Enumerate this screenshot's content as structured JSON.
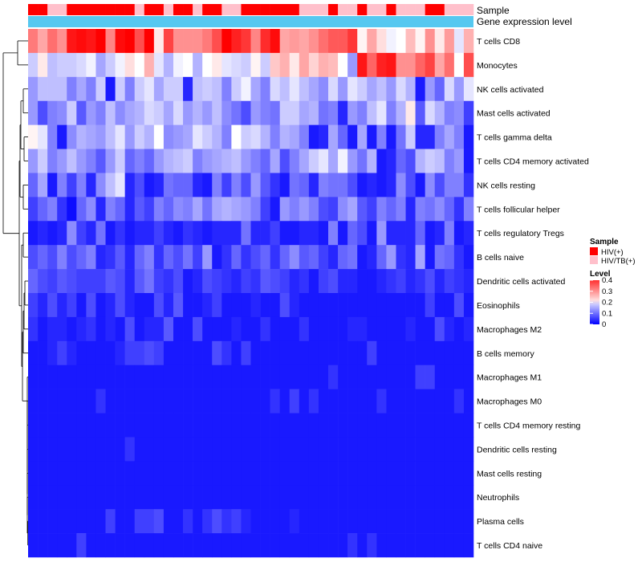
{
  "chart_data": {
    "type": "heatmap",
    "annotation_labels": [
      "Sample",
      "Gene expression level"
    ],
    "rows": [
      "T cells CD8",
      "Monocytes",
      "NK cells activated",
      "Mast cells activated",
      "T cells gamma delta",
      "T cells CD4 memory activated",
      "NK cells resting",
      "T cells follicular helper",
      "T cells regulatory  Tregs",
      "B cells naive",
      "Dendritic cells activated",
      "Eosinophils",
      "Macrophages M2",
      "B cells memory",
      "Macrophages M1",
      "Macrophages M0",
      "T cells CD4 memory resting",
      "Dendritic cells resting",
      "Mast cells resting",
      "Neutrophils",
      "Plasma cells",
      "T cells CD4 naive"
    ],
    "sample_groups": [
      "HIV(+)",
      "HIV(+)",
      "HIV/TB(+)",
      "HIV/TB(+)",
      "HIV(+)",
      "HIV(+)",
      "HIV(+)",
      "HIV(+)",
      "HIV(+)",
      "HIV(+)",
      "HIV(+)",
      "HIV/TB(+)",
      "HIV(+)",
      "HIV(+)",
      "HIV/TB(+)",
      "HIV(+)",
      "HIV(+)",
      "HIV/TB(+)",
      "HIV(+)",
      "HIV(+)",
      "HIV/TB(+)",
      "HIV/TB(+)",
      "HIV(+)",
      "HIV(+)",
      "HIV(+)",
      "HIV(+)",
      "HIV(+)",
      "HIV(+)",
      "HIV/TB(+)",
      "HIV/TB(+)",
      "HIV/TB(+)",
      "HIV(+)",
      "HIV/TB(+)",
      "HIV/TB(+)",
      "HIV(+)",
      "HIV/TB(+)",
      "HIV/TB(+)",
      "HIV(+)",
      "HIV/TB(+)",
      "HIV/TB(+)",
      "HIV/TB(+)",
      "HIV(+)",
      "HIV(+)",
      "HIV/TB(+)",
      "HIV/TB(+)",
      "HIV/TB(+)"
    ],
    "values": [
      [
        0.32,
        0.28,
        0.33,
        0.3,
        0.41,
        0.42,
        0.41,
        0.43,
        0.31,
        0.42,
        0.43,
        0.36,
        0.43,
        0.22,
        0.37,
        0.3,
        0.3,
        0.3,
        0.32,
        0.36,
        0.43,
        0.4,
        0.38,
        0.31,
        0.39,
        0.42,
        0.28,
        0.29,
        0.28,
        0.3,
        0.33,
        0.35,
        0.35,
        0.38,
        0.21,
        0.28,
        0.23,
        0.19,
        0.2,
        0.26,
        0.21,
        0.3,
        0.22,
        0.29,
        0.18,
        0.27
      ],
      [
        0.16,
        0.22,
        0.15,
        0.16,
        0.16,
        0.17,
        0.19,
        0.13,
        0.16,
        0.19,
        0.23,
        0.2,
        0.27,
        0.18,
        0.14,
        0.19,
        0.2,
        0.14,
        0.2,
        0.22,
        0.18,
        0.17,
        0.16,
        0.21,
        0.16,
        0.25,
        0.27,
        0.22,
        0.28,
        0.24,
        0.27,
        0.26,
        0.2,
        0.12,
        0.41,
        0.34,
        0.4,
        0.41,
        0.3,
        0.3,
        0.34,
        0.37,
        0.28,
        0.33,
        0.2,
        0.36
      ],
      [
        0.12,
        0.15,
        0.15,
        0.15,
        0.1,
        0.13,
        0.1,
        0.16,
        0.02,
        0.16,
        0.1,
        0.16,
        0.18,
        0.13,
        0.16,
        0.16,
        0.03,
        0.15,
        0.16,
        0.15,
        0.1,
        0.16,
        0.19,
        0.13,
        0.1,
        0.17,
        0.15,
        0.18,
        0.15,
        0.13,
        0.11,
        0.17,
        0.12,
        0.18,
        0.16,
        0.13,
        0.15,
        0.12,
        0.17,
        0.14,
        0.02,
        0.12,
        0.08,
        0.17,
        0.12,
        0.18
      ],
      [
        0.12,
        0.06,
        0.1,
        0.11,
        0.16,
        0.07,
        0.12,
        0.1,
        0.15,
        0.11,
        0.13,
        0.14,
        0.17,
        0.16,
        0.13,
        0.17,
        0.12,
        0.14,
        0.12,
        0.15,
        0.11,
        0.09,
        0.06,
        0.12,
        0.1,
        0.09,
        0.16,
        0.16,
        0.13,
        0.14,
        0.09,
        0.1,
        0.03,
        0.12,
        0.1,
        0.15,
        0.18,
        0.1,
        0.14,
        0.22,
        0.07,
        0.17,
        0.14,
        0.1,
        0.11,
        0.05
      ],
      [
        0.21,
        0.18,
        0.1,
        0.02,
        0.11,
        0.14,
        0.13,
        0.12,
        0.15,
        0.18,
        0.12,
        0.16,
        0.14,
        0.2,
        0.11,
        0.12,
        0.13,
        0.18,
        0.16,
        0.14,
        0.1,
        0.2,
        0.16,
        0.17,
        0.14,
        0.1,
        0.14,
        0.13,
        0.1,
        0.02,
        0.03,
        0.13,
        0.08,
        0.02,
        0.13,
        0.02,
        0.1,
        0.02,
        0.09,
        0.16,
        0.03,
        0.03,
        0.1,
        0.13,
        0.1,
        0.02
      ],
      [
        0.12,
        0.16,
        0.1,
        0.12,
        0.15,
        0.12,
        0.1,
        0.07,
        0.12,
        0.16,
        0.08,
        0.1,
        0.08,
        0.12,
        0.14,
        0.15,
        0.16,
        0.1,
        0.12,
        0.13,
        0.14,
        0.15,
        0.12,
        0.1,
        0.08,
        0.13,
        0.06,
        0.1,
        0.13,
        0.16,
        0.18,
        0.13,
        0.19,
        0.12,
        0.09,
        0.14,
        0.02,
        0.03,
        0.08,
        0.06,
        0.14,
        0.16,
        0.15,
        0.1,
        0.12,
        0.02
      ],
      [
        0.08,
        0.13,
        0.02,
        0.1,
        0.05,
        0.1,
        0.03,
        0.11,
        0.15,
        0.18,
        0.03,
        0.06,
        0.02,
        0.03,
        0.09,
        0.08,
        0.08,
        0.03,
        0.02,
        0.1,
        0.05,
        0.1,
        0.06,
        0.12,
        0.07,
        0.04,
        0.02,
        0.09,
        0.08,
        0.03,
        0.1,
        0.09,
        0.09,
        0.06,
        0.02,
        0.03,
        0.02,
        0.03,
        0.11,
        0.06,
        0.02,
        0.11,
        0.06,
        0.1,
        0.1,
        0.04
      ],
      [
        0.05,
        0.08,
        0.1,
        0.04,
        0.01,
        0.08,
        0.11,
        0.03,
        0.1,
        0.08,
        0.03,
        0.07,
        0.05,
        0.1,
        0.08,
        0.11,
        0.1,
        0.13,
        0.09,
        0.13,
        0.14,
        0.13,
        0.12,
        0.1,
        0.05,
        0.02,
        0.12,
        0.1,
        0.12,
        0.1,
        0.06,
        0.05,
        0.11,
        0.13,
        0.07,
        0.05,
        0.1,
        0.08,
        0.1,
        0.03,
        0.1,
        0.09,
        0.11,
        0.08,
        0.04,
        0.1
      ],
      [
        0.02,
        0.03,
        0.02,
        0.03,
        0.11,
        0.05,
        0.03,
        0.09,
        0.02,
        0.04,
        0.02,
        0.03,
        0.03,
        0.05,
        0.03,
        0.02,
        0.04,
        0.03,
        0.02,
        0.03,
        0.03,
        0.03,
        0.09,
        0.03,
        0.03,
        0.05,
        0.02,
        0.02,
        0.03,
        0.03,
        0.02,
        0.1,
        0.02,
        0.08,
        0.06,
        0.02,
        0.12,
        0.03,
        0.03,
        0.03,
        0.08,
        0.02,
        0.03,
        0.1,
        0.02,
        0.03
      ],
      [
        0.06,
        0.08,
        0.06,
        0.1,
        0.06,
        0.08,
        0.1,
        0.03,
        0.04,
        0.07,
        0.03,
        0.08,
        0.1,
        0.04,
        0.08,
        0.06,
        0.09,
        0.05,
        0.12,
        0.02,
        0.04,
        0.08,
        0.04,
        0.06,
        0.08,
        0.04,
        0.08,
        0.11,
        0.07,
        0.08,
        0.05,
        0.03,
        0.08,
        0.09,
        0.02,
        0.03,
        0.08,
        0.12,
        0.04,
        0.03,
        0.13,
        0.02,
        0.09,
        0.08,
        0.04,
        0.02
      ],
      [
        0.08,
        0.06,
        0.05,
        0.07,
        0.06,
        0.05,
        0.05,
        0.05,
        0.07,
        0.06,
        0.03,
        0.07,
        0.09,
        0.05,
        0.04,
        0.06,
        0.02,
        0.03,
        0.06,
        0.05,
        0.04,
        0.03,
        0.05,
        0.04,
        0.07,
        0.06,
        0.05,
        0.03,
        0.04,
        0.02,
        0.05,
        0.06,
        0.03,
        0.03,
        0.02,
        0.02,
        0.03,
        0.04,
        0.05,
        0.03,
        0.04,
        0.06,
        0.03,
        0.05,
        0.04,
        0.03
      ],
      [
        0.05,
        0.03,
        0.06,
        0.03,
        0.05,
        0.02,
        0.06,
        0.02,
        0.03,
        0.06,
        0.03,
        0.02,
        0.02,
        0.06,
        0.03,
        0.07,
        0.02,
        0.02,
        0.03,
        0.05,
        0.02,
        0.02,
        0.02,
        0.03,
        0.02,
        0.02,
        0.06,
        0.03,
        0.02,
        0.02,
        0.02,
        0.02,
        0.02,
        0.02,
        0.02,
        0.02,
        0.02,
        0.02,
        0.02,
        0.02,
        0.02,
        0.05,
        0.02,
        0.02,
        0.06,
        0.02
      ],
      [
        0.04,
        0.02,
        0.03,
        0.03,
        0.02,
        0.03,
        0.04,
        0.02,
        0.03,
        0.02,
        0.06,
        0.02,
        0.03,
        0.03,
        0.07,
        0.02,
        0.02,
        0.06,
        0.02,
        0.02,
        0.02,
        0.03,
        0.02,
        0.02,
        0.04,
        0.02,
        0.02,
        0.02,
        0.04,
        0.02,
        0.02,
        0.02,
        0.02,
        0.03,
        0.03,
        0.02,
        0.02,
        0.02,
        0.02,
        0.03,
        0.02,
        0.02,
        0.06,
        0.03,
        0.02,
        0.03
      ],
      [
        0.02,
        0.02,
        0.03,
        0.05,
        0.03,
        0.02,
        0.02,
        0.02,
        0.02,
        0.03,
        0.05,
        0.05,
        0.06,
        0.05,
        0.02,
        0.02,
        0.02,
        0.02,
        0.02,
        0.06,
        0.04,
        0.02,
        0.05,
        0.02,
        0.02,
        0.02,
        0.02,
        0.02,
        0.02,
        0.02,
        0.02,
        0.02,
        0.02,
        0.02,
        0.02,
        0.05,
        0.02,
        0.02,
        0.02,
        0.02,
        0.02,
        0.02,
        0.02,
        0.02,
        0.02,
        0.02
      ],
      [
        0.02,
        0.02,
        0.02,
        0.02,
        0.02,
        0.02,
        0.02,
        0.02,
        0.02,
        0.02,
        0.02,
        0.02,
        0.02,
        0.02,
        0.02,
        0.02,
        0.02,
        0.02,
        0.02,
        0.02,
        0.02,
        0.02,
        0.02,
        0.02,
        0.02,
        0.02,
        0.02,
        0.02,
        0.02,
        0.02,
        0.02,
        0.04,
        0.02,
        0.02,
        0.02,
        0.02,
        0.02,
        0.02,
        0.02,
        0.02,
        0.05,
        0.05,
        0.02,
        0.02,
        0.02,
        0.02
      ],
      [
        0.02,
        0.02,
        0.02,
        0.02,
        0.02,
        0.02,
        0.02,
        0.04,
        0.02,
        0.02,
        0.02,
        0.02,
        0.02,
        0.02,
        0.02,
        0.02,
        0.02,
        0.02,
        0.02,
        0.02,
        0.02,
        0.02,
        0.02,
        0.02,
        0.02,
        0.04,
        0.02,
        0.05,
        0.02,
        0.04,
        0.02,
        0.02,
        0.02,
        0.02,
        0.02,
        0.02,
        0.04,
        0.02,
        0.02,
        0.02,
        0.02,
        0.02,
        0.02,
        0.02,
        0.04,
        0.02
      ],
      [
        0.02,
        0.02,
        0.02,
        0.02,
        0.02,
        0.02,
        0.02,
        0.02,
        0.02,
        0.02,
        0.02,
        0.02,
        0.02,
        0.02,
        0.02,
        0.02,
        0.02,
        0.02,
        0.02,
        0.02,
        0.02,
        0.02,
        0.02,
        0.02,
        0.02,
        0.02,
        0.02,
        0.02,
        0.02,
        0.02,
        0.02,
        0.02,
        0.02,
        0.02,
        0.02,
        0.02,
        0.02,
        0.02,
        0.02,
        0.02,
        0.02,
        0.02,
        0.02,
        0.02,
        0.02,
        0.02
      ],
      [
        0.02,
        0.02,
        0.02,
        0.02,
        0.02,
        0.02,
        0.02,
        0.02,
        0.02,
        0.02,
        0.04,
        0.02,
        0.02,
        0.02,
        0.02,
        0.02,
        0.02,
        0.02,
        0.02,
        0.02,
        0.02,
        0.02,
        0.02,
        0.02,
        0.02,
        0.02,
        0.02,
        0.02,
        0.02,
        0.02,
        0.02,
        0.02,
        0.02,
        0.02,
        0.02,
        0.02,
        0.02,
        0.02,
        0.02,
        0.02,
        0.02,
        0.02,
        0.02,
        0.02,
        0.02,
        0.02
      ],
      [
        0.02,
        0.02,
        0.02,
        0.02,
        0.02,
        0.02,
        0.02,
        0.02,
        0.02,
        0.02,
        0.02,
        0.02,
        0.02,
        0.02,
        0.02,
        0.02,
        0.02,
        0.02,
        0.02,
        0.02,
        0.02,
        0.02,
        0.02,
        0.02,
        0.02,
        0.02,
        0.02,
        0.02,
        0.02,
        0.02,
        0.02,
        0.02,
        0.02,
        0.02,
        0.02,
        0.02,
        0.02,
        0.02,
        0.02,
        0.02,
        0.02,
        0.02,
        0.02,
        0.02,
        0.02,
        0.02
      ],
      [
        0.02,
        0.02,
        0.02,
        0.02,
        0.02,
        0.02,
        0.02,
        0.02,
        0.02,
        0.02,
        0.02,
        0.02,
        0.02,
        0.02,
        0.02,
        0.02,
        0.02,
        0.02,
        0.02,
        0.02,
        0.02,
        0.02,
        0.02,
        0.02,
        0.02,
        0.02,
        0.02,
        0.02,
        0.02,
        0.02,
        0.02,
        0.02,
        0.02,
        0.02,
        0.02,
        0.02,
        0.02,
        0.02,
        0.02,
        0.02,
        0.02,
        0.02,
        0.02,
        0.02,
        0.02,
        0.02
      ],
      [
        0.02,
        0.02,
        0.02,
        0.02,
        0.02,
        0.02,
        0.02,
        0.02,
        0.05,
        0.02,
        0.02,
        0.05,
        0.05,
        0.06,
        0.02,
        0.02,
        0.04,
        0.02,
        0.04,
        0.06,
        0.04,
        0.05,
        0.03,
        0.02,
        0.02,
        0.02,
        0.02,
        0.03,
        0.02,
        0.02,
        0.02,
        0.02,
        0.02,
        0.02,
        0.02,
        0.02,
        0.02,
        0.02,
        0.02,
        0.02,
        0.02,
        0.02,
        0.02,
        0.02,
        0.02,
        0.02
      ],
      [
        0.02,
        0.02,
        0.02,
        0.02,
        0.02,
        0.05,
        0.02,
        0.02,
        0.02,
        0.02,
        0.02,
        0.02,
        0.02,
        0.02,
        0.02,
        0.02,
        0.02,
        0.02,
        0.02,
        0.02,
        0.02,
        0.02,
        0.02,
        0.02,
        0.02,
        0.02,
        0.02,
        0.02,
        0.02,
        0.02,
        0.02,
        0.02,
        0.02,
        0.04,
        0.02,
        0.04,
        0.02,
        0.02,
        0.02,
        0.02,
        0.02,
        0.02,
        0.02,
        0.02,
        0.02,
        0.02
      ]
    ],
    "legend": {
      "sample_title": "Sample",
      "sample_entries": [
        {
          "label": "HIV(+)",
          "color": "#ff0000"
        },
        {
          "label": "HIV/TB(+)",
          "color": "#ffc0cb"
        }
      ],
      "level_title": "Level",
      "level_ticks": [
        0.4,
        0.3,
        0.2,
        0.1,
        0
      ],
      "level_tick_labels": [
        "0.4",
        "0.3",
        "0.2",
        "0.1",
        "0"
      ]
    },
    "colors": {
      "low": "#0000ff",
      "mid": "#ffffff",
      "high": "#ff0000",
      "gene_expression_bar": "#56c8f0"
    },
    "scale": {
      "min": 0,
      "mid": 0.2,
      "max": 0.43
    }
  }
}
